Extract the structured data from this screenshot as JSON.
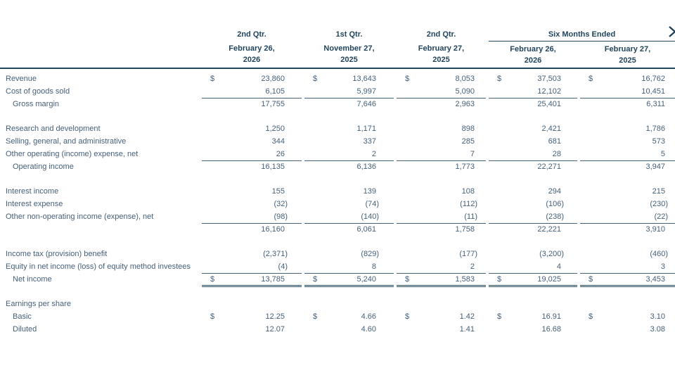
{
  "page": {
    "chevron_icon": "chevron-right"
  },
  "table": {
    "currency_symbol": "$",
    "header": {
      "quarter_columns": [
        {
          "title": "2nd Qtr.",
          "date_line1": "February 26,",
          "date_line2": "2026"
        },
        {
          "title": "1st Qtr.",
          "date_line1": "November 27,",
          "date_line2": "2025"
        },
        {
          "title": "2nd Qtr.",
          "date_line1": "February 27,",
          "date_line2": "2025"
        }
      ],
      "group_title": "Six Months Ended",
      "group_columns": [
        {
          "date_line1": "February 26,",
          "date_line2": "2026"
        },
        {
          "date_line1": "February 27,",
          "date_line2": "2025"
        }
      ]
    },
    "rows": [
      {
        "label": "Revenue",
        "dollar": true,
        "values": [
          "23,860",
          "13,643",
          "8,053",
          "37,503",
          "16,762"
        ]
      },
      {
        "label": "Cost of goods sold",
        "values": [
          "6,105",
          "5,997",
          "5,090",
          "12,102",
          "10,451"
        ],
        "border_bottom": true
      },
      {
        "label": "Gross margin",
        "indent": true,
        "values": [
          "17,755",
          "7,646",
          "2,963",
          "25,401",
          "6,311"
        ]
      },
      {
        "type": "spacer"
      },
      {
        "label": "Research and development",
        "values": [
          "1,250",
          "1,171",
          "898",
          "2,421",
          "1,786"
        ]
      },
      {
        "label": "Selling, general, and administrative",
        "values": [
          "344",
          "337",
          "285",
          "681",
          "573"
        ]
      },
      {
        "label": "Other operating (income) expense, net",
        "values": [
          "26",
          "2",
          "7",
          "28",
          "5"
        ],
        "border_bottom": true
      },
      {
        "label": "Operating income",
        "indent": true,
        "values": [
          "16,135",
          "6,136",
          "1,773",
          "22,271",
          "3,947"
        ]
      },
      {
        "type": "spacer"
      },
      {
        "label": "Interest income",
        "values": [
          "155",
          "139",
          "108",
          "294",
          "215"
        ]
      },
      {
        "label": "Interest expense",
        "values": [
          "(32)",
          "(74)",
          "(112)",
          "(106)",
          "(230)"
        ]
      },
      {
        "label": "Other non-operating income (expense), net",
        "values": [
          "(98)",
          "(140)",
          "(11)",
          "(238)",
          "(22)"
        ],
        "border_bottom": true
      },
      {
        "label": "",
        "values": [
          "16,160",
          "6,061",
          "1,758",
          "22,221",
          "3,910"
        ]
      },
      {
        "type": "spacer"
      },
      {
        "label": "Income tax (provision) benefit",
        "values": [
          "(2,371)",
          "(829)",
          "(177)",
          "(3,200)",
          "(460)"
        ]
      },
      {
        "label": "Equity in net income (loss) of equity method investees",
        "values": [
          "(4)",
          "8",
          "2",
          "4",
          "3"
        ],
        "border_bottom": true
      },
      {
        "label": "Net income",
        "indent": true,
        "dollar": true,
        "values": [
          "13,785",
          "5,240",
          "1,583",
          "19,025",
          "3,453"
        ],
        "double_bottom": true
      },
      {
        "type": "spacer"
      },
      {
        "label": "Earnings per share",
        "values": []
      },
      {
        "label": "Basic",
        "indent": true,
        "dollar": true,
        "values": [
          "12.25",
          "4.66",
          "1.42",
          "16.91",
          "3.10"
        ]
      },
      {
        "label": "Diluted",
        "indent": true,
        "values": [
          "12.07",
          "4.60",
          "1.41",
          "16.68",
          "3.08"
        ]
      }
    ],
    "colors": {
      "body_text": "#456079",
      "header_text": "#22455e",
      "thin_rule": "#456079",
      "heavy_rule": "#22455e"
    }
  }
}
